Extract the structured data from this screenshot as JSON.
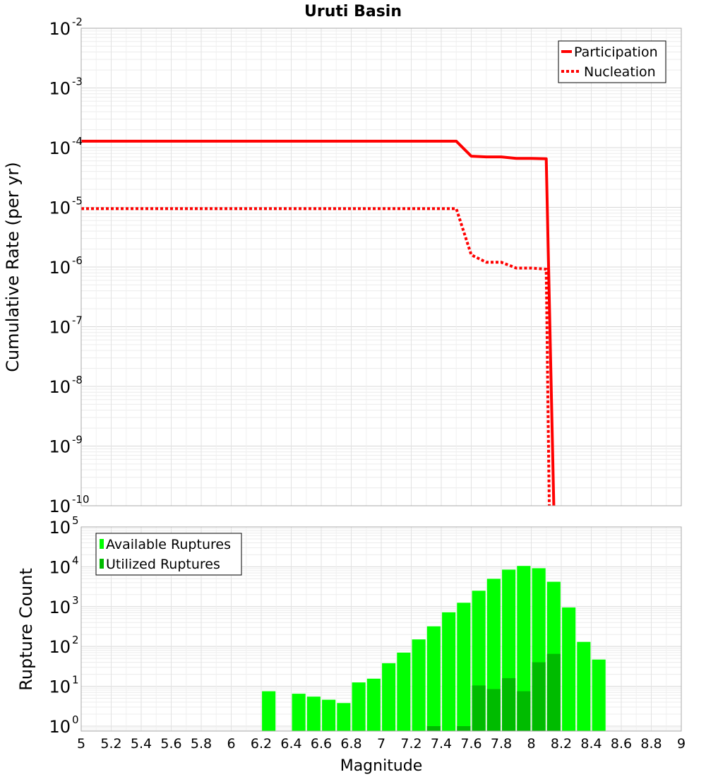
{
  "title": "Uruti Basin",
  "x_axis": {
    "label": "Magnitude",
    "ticks": [
      "5",
      "5.2",
      "5.4",
      "5.6",
      "5.8",
      "6",
      "6.2",
      "6.4",
      "6.6",
      "6.8",
      "7",
      "7.2",
      "7.4",
      "7.6",
      "7.8",
      "8",
      "8.2",
      "8.4",
      "8.6",
      "8.8",
      "9"
    ]
  },
  "chart_data": [
    {
      "type": "line",
      "title": "Uruti Basin",
      "ylabel": "Cumulative Rate (per yr)",
      "y_scale": "log",
      "xlim": [
        5,
        9
      ],
      "ylim": [
        1e-10,
        0.01
      ],
      "y_ticks": [
        {
          "base": "10",
          "exp": "-2"
        },
        {
          "base": "10",
          "exp": "-3"
        },
        {
          "base": "10",
          "exp": "-4"
        },
        {
          "base": "10",
          "exp": "-5"
        },
        {
          "base": "10",
          "exp": "-6"
        },
        {
          "base": "10",
          "exp": "-7"
        },
        {
          "base": "10",
          "exp": "-8"
        },
        {
          "base": "10",
          "exp": "-9"
        },
        {
          "base": "10",
          "exp": "-10"
        }
      ],
      "grid": true,
      "legend_position": "top-right",
      "series": [
        {
          "name": "Participation",
          "color": "#ff0000",
          "style": "solid",
          "x": [
            5.0,
            7.5,
            7.6,
            7.7,
            7.8,
            7.9,
            8.0,
            8.1,
            8.15
          ],
          "y": [
            0.000128,
            0.000128,
            7.2e-05,
            7e-05,
            7e-05,
            6.6e-05,
            6.6e-05,
            6.5e-05,
            1e-10
          ]
        },
        {
          "name": "Nucleation",
          "color": "#ff0000",
          "style": "dotted",
          "x": [
            5.0,
            7.5,
            7.6,
            7.7,
            7.8,
            7.9,
            8.0,
            8.1,
            8.12
          ],
          "y": [
            9.5e-06,
            9.5e-06,
            1.6e-06,
            1.2e-06,
            1.2e-06,
            9.6e-07,
            9.6e-07,
            9.2e-07,
            1e-10
          ]
        }
      ]
    },
    {
      "type": "bar",
      "ylabel": "Rupture Count",
      "y_scale": "log",
      "xlim": [
        5,
        9
      ],
      "ylim": [
        0.75,
        100000
      ],
      "y_ticks": [
        {
          "base": "10",
          "exp": "5"
        },
        {
          "base": "10",
          "exp": "4"
        },
        {
          "base": "10",
          "exp": "3"
        },
        {
          "base": "10",
          "exp": "2"
        },
        {
          "base": "10",
          "exp": "1"
        },
        {
          "base": "10",
          "exp": "0"
        }
      ],
      "grid": true,
      "legend_position": "top-left",
      "bar_width": 0.09,
      "series": [
        {
          "name": "Available Ruptures",
          "color": "#00ff00",
          "x": [
            6.25,
            6.45,
            6.55,
            6.65,
            6.75,
            6.85,
            6.95,
            7.05,
            7.15,
            7.25,
            7.35,
            7.45,
            7.55,
            7.65,
            7.75,
            7.85,
            7.95,
            8.05,
            8.15,
            8.25,
            8.35,
            8.45
          ],
          "values": [
            7.5,
            6.5,
            5.5,
            4.6,
            3.8,
            12.5,
            15.5,
            38,
            70,
            150,
            320,
            720,
            1250,
            2500,
            5000,
            8500,
            10500,
            9200,
            4200,
            950,
            130,
            47
          ]
        },
        {
          "name": "Utilized Ruptures",
          "color": "#00bb00",
          "x": [
            7.35,
            7.55,
            7.65,
            7.75,
            7.85,
            7.95,
            8.05,
            8.15
          ],
          "values": [
            1.0,
            1.0,
            10.5,
            8.5,
            16,
            7.5,
            40,
            65
          ]
        }
      ]
    }
  ]
}
